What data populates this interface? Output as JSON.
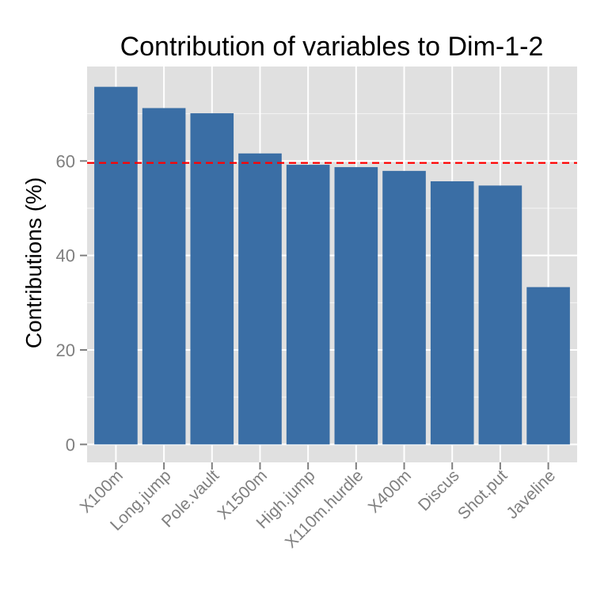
{
  "chart_data": {
    "type": "bar",
    "title": "Contribution of variables to Dim-1-2",
    "xlabel": "",
    "ylabel": "Contributions (%)",
    "categories": [
      "X100m",
      "Long.jump",
      "Pole.vault",
      "X1500m",
      "High.jump",
      "X110m.hurdle",
      "X400m",
      "Discus",
      "Shot.put",
      "Javeline"
    ],
    "values": [
      75.7,
      71.2,
      70.1,
      61.6,
      59.2,
      58.7,
      57.9,
      55.7,
      54.8,
      33.3
    ],
    "ylim": [
      -3.8,
      80
    ],
    "yticks": [
      0,
      20,
      40,
      60
    ],
    "reference_line": {
      "value": 59.6,
      "style": "dashed",
      "color": "#ff0000"
    },
    "bar_color": "#3a6ea5",
    "panel_background": "#e0e0e0",
    "grid": true,
    "legend": "none"
  }
}
